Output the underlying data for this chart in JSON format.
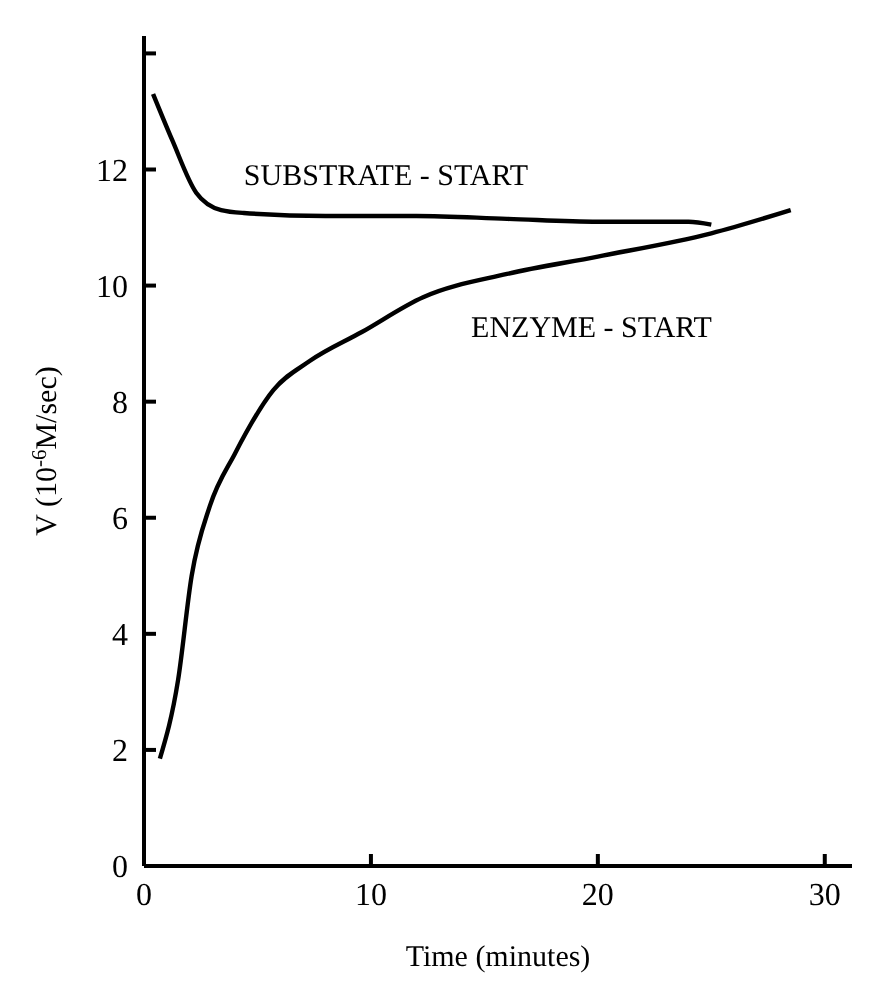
{
  "chart_data": {
    "type": "line",
    "xlabel": "Time (minutes)",
    "ylabel": "V (10$^{-6}$M/sec)",
    "xlim": [
      0,
      31.2
    ],
    "ylim": [
      0,
      14.3
    ],
    "xticks": [
      0,
      10,
      20,
      30
    ],
    "yticks": [
      0,
      2,
      4,
      6,
      8,
      10,
      12,
      {
        "value": 14,
        "label": null
      }
    ],
    "grid": false,
    "legend": false,
    "marker": "none",
    "line_style": "solid",
    "series": [
      {
        "name": "SUBSTRATE - START",
        "color": "#000000",
        "x": [
          0.4,
          1.25,
          2.3,
          3.4,
          4.4,
          8,
          12,
          16,
          20,
          24,
          25
        ],
        "values": [
          13.3,
          12.5,
          11.6,
          11.3,
          11.25,
          11.2,
          11.2,
          11.15,
          11.1,
          11.1,
          11.05
        ]
      },
      {
        "name": "ENZYME - START",
        "color": "#000000",
        "x": [
          0.7,
          1.5,
          2.1,
          2.9,
          4,
          5.7,
          7.3,
          9.6,
          12.3,
          16,
          20,
          25,
          28.5
        ],
        "values": [
          1.85,
          3.2,
          5.0,
          6.2,
          7.1,
          8.2,
          8.7,
          9.2,
          9.8,
          10.2,
          10.5,
          10.9,
          11.3
        ]
      }
    ]
  }
}
